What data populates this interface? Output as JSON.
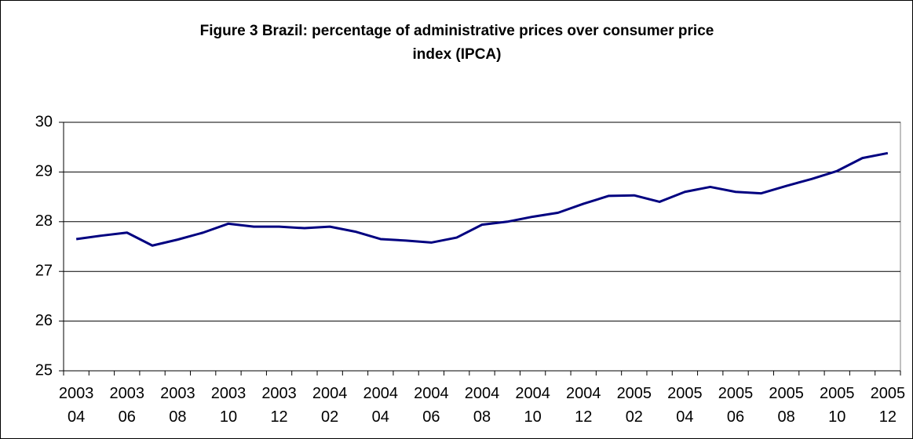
{
  "chart_data": {
    "type": "line",
    "title": "Figure 3 Brazil: percentage of administrative prices over consumer price index (IPCA)",
    "categories": [
      "2003 04",
      null,
      "2003 06",
      null,
      "2003 08",
      null,
      "2003 10",
      null,
      "2003 12",
      null,
      "2004 02",
      null,
      "2004 04",
      null,
      "2004 06",
      null,
      "2004 08",
      null,
      "2004 10",
      null,
      "2004 12",
      null,
      "2005 02",
      null,
      "2005 04",
      null,
      "2005 06",
      null,
      "2005 08",
      null,
      "2005 10",
      null,
      "2005 12"
    ],
    "values": [
      27.65,
      27.72,
      27.78,
      27.52,
      27.64,
      27.78,
      27.96,
      27.9,
      27.9,
      27.87,
      27.9,
      27.8,
      27.65,
      27.62,
      27.58,
      27.68,
      27.94,
      28.0,
      28.1,
      28.18,
      28.36,
      28.52,
      28.53,
      28.4,
      28.6,
      28.7,
      28.6,
      28.57,
      28.72,
      28.86,
      29.02,
      29.28,
      29.38
    ],
    "color": "#000080",
    "ylim": [
      25,
      30
    ],
    "yticks": [
      25,
      26,
      27,
      28,
      29,
      30
    ],
    "grid": true
  }
}
